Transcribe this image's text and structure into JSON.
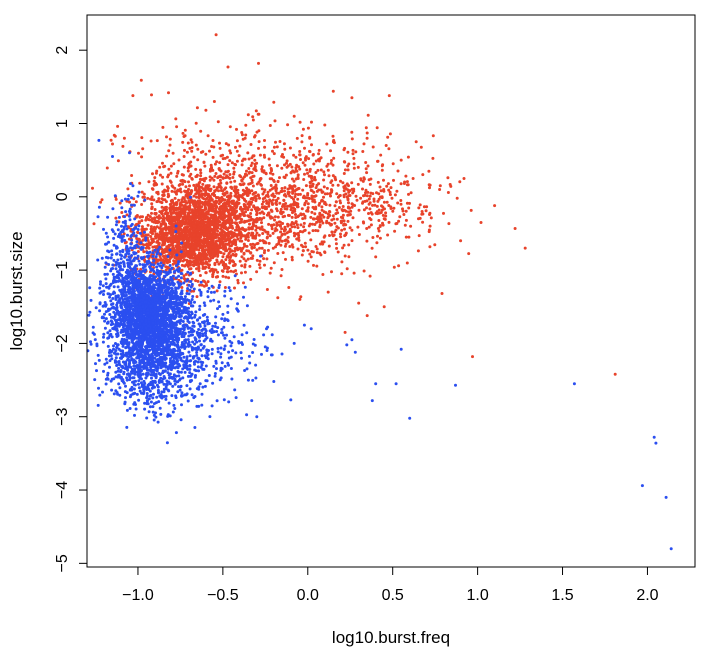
{
  "chart_data": {
    "type": "scatter",
    "title": "",
    "xlabel": "log10.burst.freq",
    "ylabel": "log10.burst.size",
    "xlim": [
      -1.3,
      2.28
    ],
    "ylim": [
      -5.05,
      2.48
    ],
    "x_ticks": [
      -1.0,
      -0.5,
      0.0,
      0.5,
      1.0,
      1.5,
      2.0
    ],
    "x_tick_labels": [
      "−1.0",
      "−0.5",
      "0.0",
      "0.5",
      "1.0",
      "1.5",
      "2.0"
    ],
    "y_ticks": [
      -5,
      -4,
      -3,
      -2,
      -1,
      0,
      1,
      2
    ],
    "y_tick_labels": [
      "−5",
      "−4",
      "−3",
      "−2",
      "−1",
      "0",
      "1",
      "2"
    ],
    "grid": false,
    "legend": "none",
    "series": [
      {
        "color": "#e8432b",
        "points": [
          [
            -0.54,
            2.21
          ],
          [
            -0.47,
            1.77
          ],
          [
            -0.29,
            1.82
          ],
          [
            -0.98,
            1.59
          ],
          [
            -0.82,
            1.42
          ],
          [
            -1.03,
            1.38
          ],
          [
            -0.92,
            1.39
          ],
          [
            0.48,
            1.38
          ],
          [
            0.26,
            1.35
          ],
          [
            0.15,
            1.44
          ],
          [
            -0.55,
            1.3
          ],
          [
            -0.2,
            1.29
          ],
          [
            -0.6,
            1.18
          ],
          [
            -0.35,
            1.12
          ],
          [
            -0.08,
            1.1
          ],
          [
            0.1,
            0.98
          ],
          [
            0.35,
            0.87
          ],
          [
            -1.12,
            0.96
          ],
          [
            -1.08,
            0.8
          ],
          [
            -1.15,
            0.72
          ],
          [
            0.55,
            0.5
          ],
          [
            0.62,
            0.25
          ],
          [
            0.78,
            0.15
          ],
          [
            0.92,
            0.25
          ],
          [
            0.88,
            -0.02
          ],
          [
            1.1,
            -0.12
          ],
          [
            1.02,
            -0.35
          ],
          [
            1.28,
            -0.7
          ],
          [
            0.9,
            -0.6
          ],
          [
            0.72,
            -0.4
          ],
          [
            0.58,
            -0.55
          ],
          [
            0.45,
            -0.3
          ],
          [
            0.4,
            -0.82
          ],
          [
            0.2,
            -1.05
          ],
          [
            0.12,
            -1.3
          ],
          [
            0.3,
            -1.45
          ],
          [
            0.45,
            -1.5
          ],
          [
            0.35,
            -1.62
          ],
          [
            0.22,
            -1.85
          ],
          [
            0.97,
            -2.18
          ],
          [
            1.81,
            -2.42
          ]
        ],
        "clusters": [
          {
            "cx": -0.62,
            "cy": -0.42,
            "sx": 0.17,
            "sy": 0.33,
            "n": 1700
          },
          {
            "cx": -0.78,
            "cy": -0.6,
            "sx": 0.13,
            "sy": 0.25,
            "n": 700
          },
          {
            "cx": -0.2,
            "cy": -0.15,
            "sx": 0.25,
            "sy": 0.4,
            "n": 600
          },
          {
            "cx": 0.15,
            "cy": -0.05,
            "sx": 0.25,
            "sy": 0.42,
            "n": 350
          },
          {
            "cx": 0.45,
            "cy": -0.1,
            "sx": 0.2,
            "sy": 0.35,
            "n": 120
          },
          {
            "cx": -0.5,
            "cy": 0.35,
            "sx": 0.3,
            "sy": 0.35,
            "n": 260
          }
        ]
      },
      {
        "color": "#2b4ff0",
        "points": [
          [
            -1.23,
            0.77
          ],
          [
            -1.15,
            0.55
          ],
          [
            -1.05,
            0.6
          ],
          [
            -0.3,
            -3.0
          ],
          [
            -0.33,
            -2.78
          ],
          [
            -0.2,
            -2.52
          ],
          [
            -0.1,
            -2.77
          ],
          [
            0.26,
            -1.95
          ],
          [
            0.28,
            -2.12
          ],
          [
            0.23,
            -2.02
          ],
          [
            0.4,
            -2.55
          ],
          [
            0.38,
            -2.78
          ],
          [
            0.52,
            -2.55
          ],
          [
            0.6,
            -3.02
          ],
          [
            0.55,
            -2.08
          ],
          [
            0.87,
            -2.57
          ],
          [
            1.57,
            -2.55
          ],
          [
            -0.02,
            -1.75
          ],
          [
            0.02,
            -1.8
          ],
          [
            -0.08,
            -2.0
          ],
          [
            2.04,
            -3.28
          ],
          [
            2.05,
            -3.36
          ],
          [
            1.97,
            -3.94
          ],
          [
            2.11,
            -4.1
          ],
          [
            2.14,
            -4.8
          ]
        ],
        "clusters": [
          {
            "cx": -0.93,
            "cy": -1.55,
            "sx": 0.09,
            "sy": 0.3,
            "n": 1000
          },
          {
            "cx": -0.92,
            "cy": -1.72,
            "sx": 0.12,
            "sy": 0.4,
            "n": 1300
          },
          {
            "cx": -0.95,
            "cy": -2.25,
            "sx": 0.13,
            "sy": 0.35,
            "n": 500
          },
          {
            "cx": -1.08,
            "cy": -1.15,
            "sx": 0.06,
            "sy": 0.55,
            "n": 400
          },
          {
            "cx": -0.7,
            "cy": -2.0,
            "sx": 0.12,
            "sy": 0.45,
            "n": 300
          },
          {
            "cx": -0.5,
            "cy": -1.9,
            "sx": 0.14,
            "sy": 0.4,
            "n": 120
          }
        ]
      }
    ]
  }
}
